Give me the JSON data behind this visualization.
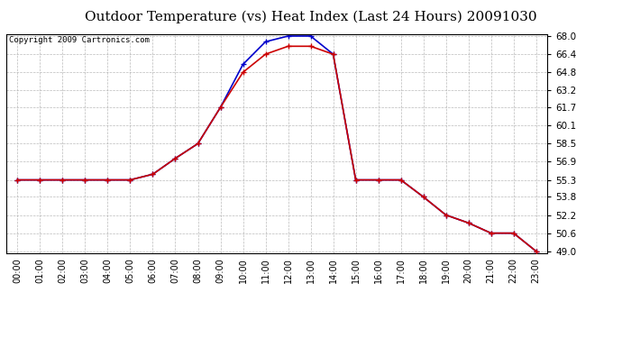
{
  "title": "Outdoor Temperature (vs) Heat Index (Last 24 Hours) 20091030",
  "copyright_text": "Copyright 2009 Cartronics.com",
  "hours": [
    "00:00",
    "01:00",
    "02:00",
    "03:00",
    "04:00",
    "05:00",
    "06:00",
    "07:00",
    "08:00",
    "09:00",
    "10:00",
    "11:00",
    "12:00",
    "13:00",
    "14:00",
    "15:00",
    "16:00",
    "17:00",
    "18:00",
    "19:00",
    "20:00",
    "21:00",
    "22:00",
    "23:00"
  ],
  "temp": [
    55.3,
    55.3,
    55.3,
    55.3,
    55.3,
    55.3,
    55.8,
    57.2,
    58.5,
    61.7,
    64.8,
    66.4,
    67.1,
    67.1,
    66.4,
    55.3,
    55.3,
    55.3,
    53.8,
    52.2,
    51.5,
    50.6,
    50.6,
    49.0
  ],
  "heat_index": [
    55.3,
    55.3,
    55.3,
    55.3,
    55.3,
    55.3,
    55.8,
    57.2,
    58.5,
    61.7,
    65.5,
    67.5,
    68.0,
    68.0,
    66.4,
    55.3,
    55.3,
    55.3,
    53.8,
    52.2,
    51.5,
    50.6,
    50.6,
    49.0
  ],
  "temp_color": "#cc0000",
  "heat_index_color": "#0000cc",
  "ylim_min": 49.0,
  "ylim_max": 68.0,
  "yticks": [
    49.0,
    50.6,
    52.2,
    53.8,
    55.3,
    56.9,
    58.5,
    60.1,
    61.7,
    63.2,
    64.8,
    66.4,
    68.0
  ],
  "bg_color": "#ffffff",
  "plot_bg_color": "#ffffff",
  "grid_color": "#aaaaaa",
  "title_fontsize": 11,
  "copyright_fontsize": 6.5,
  "marker": "+",
  "marker_size": 4,
  "line_width": 1.2
}
